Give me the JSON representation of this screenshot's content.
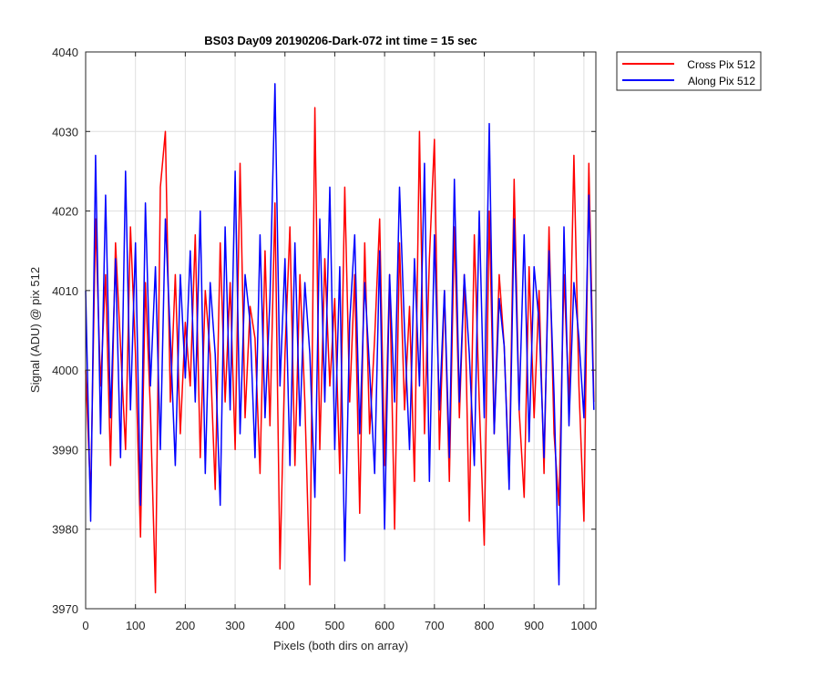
{
  "chart_data": {
    "type": "line",
    "title": "BS03 Day09 20190206-Dark-072 int time = 15 sec",
    "xlabel": "Pixels (both dirs on array)",
    "ylabel": "Signal (ADU) @ pix 512",
    "xlim": [
      0,
      1024
    ],
    "ylim": [
      3970,
      4040
    ],
    "xticks": [
      0,
      100,
      200,
      300,
      400,
      500,
      600,
      700,
      800,
      900,
      1000
    ],
    "yticks": [
      3970,
      3980,
      3990,
      4000,
      4010,
      4020,
      4030,
      4040
    ],
    "grid": true,
    "legend_position": "outside-top-right",
    "series": [
      {
        "name": "Cross Pix 512",
        "color": "#ff0000",
        "x": [
          0,
          10,
          20,
          30,
          40,
          50,
          60,
          70,
          80,
          90,
          100,
          110,
          120,
          130,
          140,
          150,
          160,
          170,
          180,
          190,
          200,
          210,
          220,
          230,
          240,
          250,
          260,
          270,
          280,
          290,
          300,
          310,
          320,
          330,
          340,
          350,
          360,
          370,
          380,
          390,
          400,
          410,
          420,
          430,
          440,
          450,
          460,
          470,
          480,
          490,
          500,
          510,
          520,
          530,
          540,
          550,
          560,
          570,
          580,
          590,
          600,
          610,
          620,
          630,
          640,
          650,
          660,
          670,
          680,
          690,
          700,
          710,
          720,
          730,
          740,
          750,
          760,
          770,
          780,
          790,
          800,
          810,
          820,
          830,
          840,
          850,
          860,
          870,
          880,
          890,
          900,
          910,
          920,
          930,
          940,
          950,
          960,
          970,
          980,
          990,
          1000,
          1010,
          1020
        ],
        "values": [
          4000,
          3984,
          4019,
          3998,
          4012,
          3988,
          4016,
          4003,
          3990,
          4018,
          4002,
          3979,
          4011,
          3995,
          3972,
          4023,
          4030,
          3996,
          4012,
          3992,
          4006,
          3998,
          4017,
          3989,
          4010,
          4002,
          3985,
          4016,
          3996,
          4011,
          3990,
          4026,
          3994,
          4008,
          4004,
          3987,
          4015,
          3993,
          4021,
          3975,
          4002,
          4018,
          3988,
          4012,
          3996,
          3973,
          4033,
          3990,
          4014,
          3998,
          4009,
          3987,
          4023,
          3996,
          4012,
          3982,
          4016,
          3992,
          4004,
          4019,
          3988,
          4012,
          3980,
          4016,
          3995,
          4008,
          3986,
          4030,
          3992,
          4014,
          4029,
          3990,
          4010,
          3986,
          4018,
          3994,
          4012,
          3981,
          4017,
          3996,
          3978,
          4020,
          3992,
          4012,
          4003,
          3986,
          4024,
          3995,
          3984,
          4013,
          3994,
          4010,
          3987,
          4018,
          3992,
          3983,
          4012,
          3996,
          4027,
          3998,
          3981,
          4026,
          3996
        ]
      },
      {
        "name": "Along Pix 512",
        "color": "#0000ff",
        "x": [
          0,
          10,
          20,
          30,
          40,
          50,
          60,
          70,
          80,
          90,
          100,
          110,
          120,
          130,
          140,
          150,
          160,
          170,
          180,
          190,
          200,
          210,
          220,
          230,
          240,
          250,
          260,
          270,
          280,
          290,
          300,
          310,
          320,
          330,
          340,
          350,
          360,
          370,
          380,
          390,
          400,
          410,
          420,
          430,
          440,
          450,
          460,
          470,
          480,
          490,
          500,
          510,
          520,
          530,
          540,
          550,
          560,
          570,
          580,
          590,
          600,
          610,
          620,
          630,
          640,
          650,
          660,
          670,
          680,
          690,
          700,
          710,
          720,
          730,
          740,
          750,
          760,
          770,
          780,
          790,
          800,
          810,
          820,
          830,
          840,
          850,
          860,
          870,
          880,
          890,
          900,
          910,
          920,
          930,
          940,
          950,
          960,
          970,
          980,
          990,
          1000,
          1010,
          1020
        ],
        "values": [
          4010,
          3981,
          4027,
          3992,
          4022,
          3994,
          4014,
          3989,
          4025,
          3995,
          4016,
          3983,
          4021,
          3998,
          4013,
          3990,
          4019,
          4004,
          3988,
          4012,
          3999,
          4015,
          3996,
          4020,
          3987,
          4011,
          4002,
          3983,
          4018,
          3995,
          4025,
          3992,
          4012,
          4006,
          3989,
          4017,
          3994,
          4009,
          4036,
          3998,
          4014,
          3988,
          4016,
          3993,
          4011,
          4002,
          3984,
          4019,
          3996,
          4023,
          3990,
          4013,
          3976,
          4006,
          4017,
          3992,
          4011,
          4000,
          3987,
          4015,
          3980,
          4012,
          3996,
          4023,
          4005,
          3990,
          4014,
          3998,
          4026,
          3986,
          4017,
          3995,
          4010,
          3989,
          4024,
          3996,
          4012,
          4002,
          3988,
          4020,
          3994,
          4031,
          3992,
          4009,
          4003,
          3985,
          4019,
          3995,
          4017,
          3991,
          4013,
          4006,
          3989,
          4015,
          3997,
          3973,
          4018,
          3993,
          4011,
          4004,
          3994,
          4022,
          3995
        ]
      }
    ]
  }
}
